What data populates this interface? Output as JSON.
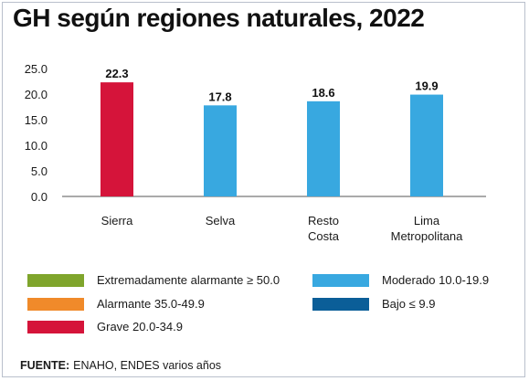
{
  "title": "GH según regiones naturales, 2022",
  "chart_data": {
    "type": "bar",
    "categories": [
      [
        "Sierra"
      ],
      [
        "Selva"
      ],
      [
        "Resto",
        "Costa"
      ],
      [
        "Lima",
        "Metropolitana"
      ]
    ],
    "values": [
      22.3,
      17.8,
      18.6,
      19.9
    ],
    "value_labels": [
      "22.3",
      "17.8",
      "18.6",
      "19.9"
    ],
    "bar_colors": [
      "#d5143a",
      "#38a8e0",
      "#38a8e0",
      "#38a8e0"
    ],
    "ylim": [
      0,
      25
    ],
    "yticks": [
      0,
      5,
      10,
      15,
      20,
      25
    ],
    "ytick_labels": [
      "0.0",
      "5.0",
      "10.0",
      "15.0",
      "20.0",
      "25.0"
    ],
    "grid": false,
    "xlabel": "",
    "ylabel": ""
  },
  "legend": [
    {
      "label": "Extremadamente alarmante ≥ 50.0",
      "color": "#7fa52c"
    },
    {
      "label": "Alarmante 35.0-49.9",
      "color": "#f08a2a"
    },
    {
      "label": "Grave 20.0-34.9",
      "color": "#d5143a"
    },
    {
      "label": "Moderado 10.0-19.9",
      "color": "#38a8e0"
    },
    {
      "label": "Bajo ≤ 9.9",
      "color": "#0b5e98"
    }
  ],
  "source": {
    "label": "FUENTE:",
    "text": "ENAHO, ENDES varios años"
  }
}
